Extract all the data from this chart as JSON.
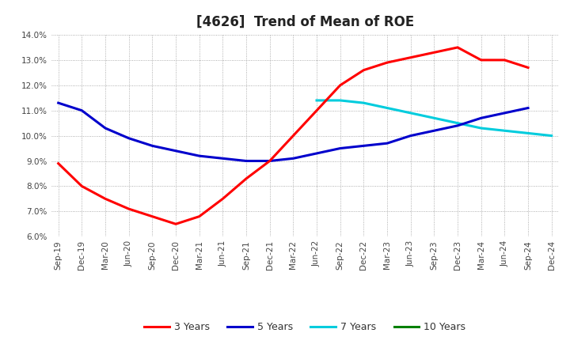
{
  "title": "[4626]  Trend of Mean of ROE",
  "ylim": [
    0.06,
    0.14
  ],
  "yticks": [
    0.06,
    0.07,
    0.08,
    0.09,
    0.1,
    0.11,
    0.12,
    0.13,
    0.14
  ],
  "x_labels": [
    "Sep-19",
    "Dec-19",
    "Mar-20",
    "Jun-20",
    "Sep-20",
    "Dec-20",
    "Mar-21",
    "Jun-21",
    "Sep-21",
    "Dec-21",
    "Mar-22",
    "Jun-22",
    "Sep-22",
    "Dec-22",
    "Mar-23",
    "Jun-23",
    "Sep-23",
    "Dec-23",
    "Mar-24",
    "Jun-24",
    "Sep-24",
    "Dec-24"
  ],
  "series_3y": [
    0.089,
    0.08,
    0.075,
    0.071,
    0.068,
    0.065,
    0.068,
    0.075,
    0.083,
    0.09,
    0.1,
    0.11,
    0.12,
    0.126,
    0.129,
    0.131,
    0.133,
    0.135,
    0.13,
    0.13,
    0.127,
    null
  ],
  "series_5y": [
    0.113,
    0.11,
    0.103,
    0.099,
    0.096,
    0.094,
    0.092,
    0.091,
    0.09,
    0.09,
    0.091,
    0.093,
    0.095,
    0.096,
    0.097,
    0.1,
    0.102,
    0.104,
    0.107,
    0.109,
    0.111,
    null
  ],
  "series_7y": [
    null,
    null,
    null,
    null,
    null,
    null,
    null,
    null,
    null,
    null,
    null,
    0.114,
    0.114,
    0.113,
    0.111,
    0.109,
    0.107,
    0.105,
    0.103,
    0.102,
    0.101,
    0.1
  ],
  "series_10y": [
    null,
    null,
    null,
    null,
    null,
    null,
    null,
    null,
    null,
    null,
    null,
    null,
    null,
    null,
    null,
    null,
    null,
    null,
    null,
    null,
    null,
    null
  ],
  "color_3y": "#FF0000",
  "color_5y": "#0000CC",
  "color_7y": "#00CCDD",
  "color_10y": "#008000",
  "background_color": "#FFFFFF",
  "grid_color": "#999999",
  "title_fontsize": 12,
  "tick_fontsize": 7.5,
  "legend_fontsize": 9
}
